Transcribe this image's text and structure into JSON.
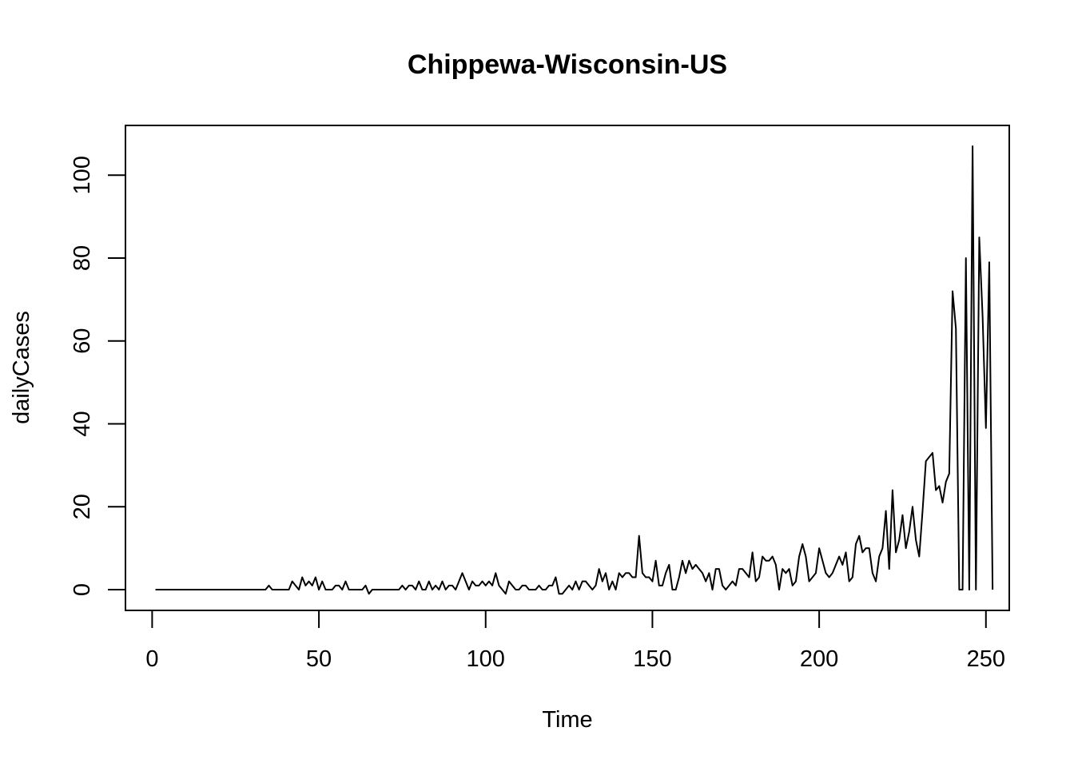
{
  "chart_data": {
    "type": "line",
    "title": "Chippewa-Wisconsin-US",
    "xlabel": "Time",
    "ylabel": "dailyCases",
    "xlim": [
      -8,
      257
    ],
    "ylim": [
      -5,
      112
    ],
    "x_ticks": [
      0,
      50,
      100,
      150,
      200,
      250
    ],
    "y_ticks": [
      0,
      20,
      40,
      60,
      80,
      100
    ],
    "x_tick_labels": [
      "0",
      "50",
      "100",
      "150",
      "200",
      "250"
    ],
    "y_tick_labels": [
      "0",
      "20",
      "40",
      "60",
      "80",
      "100"
    ],
    "grid": false,
    "line_color": "#000000",
    "series": [
      {
        "x_start": 1,
        "values": [
          0,
          0,
          0,
          0,
          0,
          0,
          0,
          0,
          0,
          0,
          0,
          0,
          0,
          0,
          0,
          0,
          0,
          0,
          0,
          0,
          0,
          0,
          0,
          0,
          0,
          0,
          0,
          0,
          0,
          0,
          0,
          0,
          0,
          0,
          1,
          0,
          0,
          0,
          0,
          0,
          0,
          2,
          1,
          0,
          3,
          1,
          2,
          1,
          3,
          0,
          2,
          0,
          0,
          0,
          1,
          1,
          0,
          2,
          0,
          0,
          0,
          0,
          0,
          1,
          -1,
          0,
          0,
          0,
          0,
          0,
          0,
          0,
          0,
          0,
          1,
          0,
          1,
          1,
          0,
          2,
          0,
          0,
          2,
          0,
          1,
          0,
          2,
          0,
          1,
          1,
          0,
          2,
          4,
          2,
          0,
          2,
          1,
          1,
          2,
          1,
          2,
          1,
          4,
          1,
          0,
          -1,
          2,
          1,
          0,
          0,
          1,
          1,
          0,
          0,
          0,
          1,
          0,
          0,
          1,
          1,
          3,
          -1,
          -1,
          0,
          1,
          0,
          2,
          0,
          2,
          2,
          1,
          0,
          1,
          5,
          2,
          4,
          0,
          2,
          0,
          4,
          3,
          4,
          4,
          3,
          3,
          13,
          4,
          3,
          3,
          2,
          7,
          1,
          1,
          4,
          6,
          0,
          0,
          3,
          7,
          4,
          7,
          5,
          6,
          5,
          4,
          2,
          4,
          0,
          5,
          5,
          1,
          0,
          1,
          2,
          1,
          5,
          5,
          4,
          3,
          9,
          2,
          3,
          8,
          7,
          7,
          8,
          6,
          0,
          5,
          4,
          5,
          1,
          2,
          8,
          11,
          8,
          2,
          3,
          4,
          10,
          7,
          4,
          3,
          4,
          6,
          8,
          6,
          9,
          2,
          3,
          11,
          13,
          9,
          10,
          10,
          4,
          2,
          8,
          10,
          19,
          5,
          24,
          9,
          12,
          18,
          10,
          14,
          20,
          12,
          8,
          19,
          31,
          32,
          33,
          24,
          25,
          21,
          26,
          28,
          72,
          63,
          0,
          0,
          80,
          0,
          107,
          0,
          85,
          66,
          39,
          79,
          0
        ]
      }
    ]
  }
}
